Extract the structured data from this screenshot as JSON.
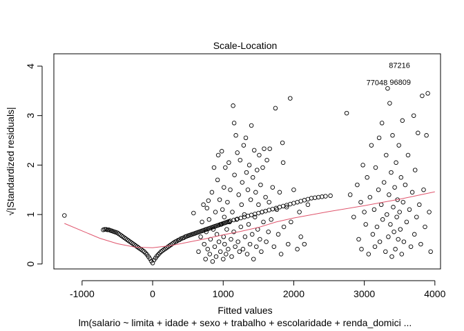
{
  "chart_data": {
    "type": "scatter",
    "title": "Scale-Location",
    "xlabel": "Fitted values",
    "ylabel": "√|Standardized residuals|",
    "subtitle": "lm(salario ~ limita + idade + sexo + trabalho + escolaridade + renda_domici ...",
    "xlim": [
      -1400,
      4080
    ],
    "ylim": [
      -0.1,
      4.25
    ],
    "x_ticks": [
      -1000,
      0,
      1000,
      2000,
      3000,
      4000
    ],
    "y_ticks": [
      0,
      1,
      2,
      3,
      4
    ],
    "x_tick_labels": [
      "-1000",
      "0",
      "1000",
      "2000",
      "3000",
      "4000"
    ],
    "y_tick_labels": [
      "0",
      "1",
      "2",
      "3",
      "4"
    ],
    "grid": false,
    "point_color": "#000000",
    "smooth_color": "#DF536B",
    "smooth_line": [
      [
        -1250,
        0.82
      ],
      [
        -1000,
        0.67
      ],
      [
        -750,
        0.52
      ],
      [
        -500,
        0.41
      ],
      [
        -250,
        0.34
      ],
      [
        0,
        0.33
      ],
      [
        250,
        0.37
      ],
      [
        500,
        0.44
      ],
      [
        750,
        0.51
      ],
      [
        1000,
        0.59
      ],
      [
        1250,
        0.66
      ],
      [
        1500,
        0.74
      ],
      [
        1750,
        0.85
      ],
      [
        2000,
        0.93
      ],
      [
        2500,
        1.06
      ],
      [
        3000,
        1.18
      ],
      [
        3500,
        1.31
      ],
      [
        4000,
        1.46
      ]
    ],
    "outliers": [
      {
        "label": "87216",
        "x": 3320,
        "y": 4.02
      },
      {
        "label": "77048",
        "x": 3000,
        "y": 3.67
      },
      {
        "label": "96809",
        "x": 3330,
        "y": 3.68
      }
    ],
    "points": [
      [
        -1250,
        0.98
      ],
      [
        -700,
        0.69
      ],
      [
        -680,
        0.7
      ],
      [
        -660,
        0.7
      ],
      [
        -640,
        0.69
      ],
      [
        -620,
        0.69
      ],
      [
        -600,
        0.68
      ],
      [
        -580,
        0.67
      ],
      [
        -560,
        0.66
      ],
      [
        -540,
        0.65
      ],
      [
        -520,
        0.64
      ],
      [
        -500,
        0.63
      ],
      [
        -480,
        0.61
      ],
      [
        -460,
        0.59
      ],
      [
        -440,
        0.57
      ],
      [
        -420,
        0.55
      ],
      [
        -400,
        0.53
      ],
      [
        -380,
        0.51
      ],
      [
        -360,
        0.49
      ],
      [
        -340,
        0.47
      ],
      [
        -320,
        0.45
      ],
      [
        -300,
        0.43
      ],
      [
        -280,
        0.41
      ],
      [
        -260,
        0.39
      ],
      [
        -240,
        0.37
      ],
      [
        -220,
        0.35
      ],
      [
        -200,
        0.33
      ],
      [
        -180,
        0.31
      ],
      [
        -160,
        0.29
      ],
      [
        -140,
        0.27
      ],
      [
        -120,
        0.25
      ],
      [
        -100,
        0.22
      ],
      [
        -80,
        0.19
      ],
      [
        -60,
        0.15
      ],
      [
        -40,
        0.11
      ],
      [
        -20,
        0.06
      ],
      [
        0,
        0.02
      ],
      [
        20,
        0.08
      ],
      [
        40,
        0.12
      ],
      [
        60,
        0.16
      ],
      [
        80,
        0.19
      ],
      [
        100,
        0.22
      ],
      [
        120,
        0.25
      ],
      [
        140,
        0.27
      ],
      [
        160,
        0.29
      ],
      [
        180,
        0.31
      ],
      [
        200,
        0.33
      ],
      [
        220,
        0.35
      ],
      [
        240,
        0.37
      ],
      [
        260,
        0.39
      ],
      [
        280,
        0.41
      ],
      [
        300,
        0.43
      ],
      [
        320,
        0.45
      ],
      [
        340,
        0.46
      ],
      [
        360,
        0.48
      ],
      [
        380,
        0.49
      ],
      [
        400,
        0.51
      ],
      [
        420,
        0.52
      ],
      [
        440,
        0.53
      ],
      [
        460,
        0.55
      ],
      [
        480,
        0.56
      ],
      [
        500,
        0.57
      ],
      [
        520,
        0.58
      ],
      [
        540,
        0.59
      ],
      [
        560,
        0.6
      ],
      [
        580,
        0.61
      ],
      [
        600,
        0.62
      ],
      [
        620,
        0.63
      ],
      [
        640,
        0.64
      ],
      [
        660,
        0.65
      ],
      [
        680,
        0.66
      ],
      [
        700,
        0.67
      ],
      [
        720,
        0.68
      ],
      [
        740,
        0.69
      ],
      [
        760,
        0.7
      ],
      [
        780,
        0.71
      ],
      [
        800,
        0.72
      ],
      [
        820,
        0.73
      ],
      [
        840,
        0.74
      ],
      [
        860,
        0.75
      ],
      [
        880,
        0.76
      ],
      [
        900,
        0.77
      ],
      [
        920,
        0.78
      ],
      [
        940,
        0.79
      ],
      [
        960,
        0.8
      ],
      [
        980,
        0.81
      ],
      [
        1000,
        0.82
      ],
      [
        1020,
        0.83
      ],
      [
        1040,
        0.84
      ],
      [
        1060,
        0.85
      ],
      [
        1080,
        0.86
      ],
      [
        1100,
        0.87
      ],
      [
        1150,
        0.89
      ],
      [
        1200,
        0.91
      ],
      [
        1250,
        0.93
      ],
      [
        1300,
        0.95
      ],
      [
        1350,
        0.97
      ],
      [
        1400,
        0.99
      ],
      [
        1450,
        1.01
      ],
      [
        1500,
        1.03
      ],
      [
        1550,
        1.05
      ],
      [
        1600,
        1.07
      ],
      [
        1650,
        1.09
      ],
      [
        1700,
        1.11
      ],
      [
        1750,
        1.13
      ],
      [
        1800,
        1.15
      ],
      [
        1850,
        1.17
      ],
      [
        1900,
        1.19
      ],
      [
        1950,
        1.21
      ],
      [
        2000,
        1.23
      ],
      [
        2050,
        1.25
      ],
      [
        2100,
        1.27
      ],
      [
        2150,
        1.29
      ],
      [
        2200,
        1.31
      ],
      [
        2250,
        1.33
      ],
      [
        2300,
        1.34
      ],
      [
        2350,
        1.35
      ],
      [
        2400,
        1.36
      ],
      [
        2450,
        1.37
      ],
      [
        2520,
        1.38
      ],
      [
        580,
        1.03
      ],
      [
        650,
        0.25
      ],
      [
        680,
        0.55
      ],
      [
        700,
        0.85
      ],
      [
        720,
        1.2
      ],
      [
        730,
        0.4
      ],
      [
        750,
        0.1
      ],
      [
        760,
        0.65
      ],
      [
        770,
        1.13
      ],
      [
        780,
        0.3
      ],
      [
        790,
        1.28
      ],
      [
        800,
        0.9
      ],
      [
        810,
        0.2
      ],
      [
        820,
        0.5
      ],
      [
        840,
        1.45
      ],
      [
        850,
        0.05
      ],
      [
        860,
        0.7
      ],
      [
        870,
        1.95
      ],
      [
        880,
        0.35
      ],
      [
        890,
        1.05
      ],
      [
        900,
        0.15
      ],
      [
        910,
        0.6
      ],
      [
        920,
        1.7
      ],
      [
        930,
        2.2
      ],
      [
        940,
        0.45
      ],
      [
        950,
        1.3
      ],
      [
        960,
        0.25
      ],
      [
        970,
        0.8
      ],
      [
        980,
        2.28
      ],
      [
        990,
        1.1
      ],
      [
        1000,
        0.1
      ],
      [
        1005,
        0.55
      ],
      [
        1010,
        1.55
      ],
      [
        1015,
        0.95
      ],
      [
        1020,
        0.4
      ],
      [
        1030,
        1.95
      ],
      [
        1040,
        0.2
      ],
      [
        1050,
        0.7
      ],
      [
        1060,
        1.25
      ],
      [
        1070,
        0.3
      ],
      [
        1080,
        2.05
      ],
      [
        1090,
        0.85
      ],
      [
        1100,
        1.5
      ],
      [
        1110,
        0.5
      ],
      [
        1120,
        0.15
      ],
      [
        1130,
        1.05
      ],
      [
        1140,
        3.2
      ],
      [
        1150,
        0.65
      ],
      [
        1155,
        2.85
      ],
      [
        1160,
        1.8
      ],
      [
        1170,
        0.35
      ],
      [
        1180,
        2.6
      ],
      [
        1190,
        0.9
      ],
      [
        1200,
        2.25
      ],
      [
        1210,
        0.45
      ],
      [
        1220,
        1.4
      ],
      [
        1230,
        0.25
      ],
      [
        1240,
        2.1
      ],
      [
        1250,
        0.75
      ],
      [
        1260,
        1.2
      ],
      [
        1270,
        1.65
      ],
      [
        1280,
        0.3
      ],
      [
        1290,
        2.4
      ],
      [
        1300,
        1.0
      ],
      [
        1310,
        0.55
      ],
      [
        1320,
        2.55
      ],
      [
        1330,
        1.85
      ],
      [
        1340,
        0.2
      ],
      [
        1350,
        1.5
      ],
      [
        1360,
        0.8
      ],
      [
        1370,
        2.0
      ],
      [
        1380,
        0.4
      ],
      [
        1390,
        1.3
      ],
      [
        1400,
        2.8
      ],
      [
        1410,
        0.6
      ],
      [
        1420,
        1.75
      ],
      [
        1430,
        0.1
      ],
      [
        1440,
        2.3
      ],
      [
        1450,
        0.95
      ],
      [
        1460,
        1.45
      ],
      [
        1470,
        0.35
      ],
      [
        1480,
        1.9
      ],
      [
        1490,
        0.7
      ],
      [
        1500,
        1.2
      ],
      [
        1510,
        2.2
      ],
      [
        1520,
        0.5
      ],
      [
        1530,
        1.6
      ],
      [
        1540,
        0.25
      ],
      [
        1550,
        1.05
      ],
      [
        1560,
        1.95
      ],
      [
        1570,
        0.85
      ],
      [
        1580,
        2.33
      ],
      [
        1600,
        1.35
      ],
      [
        1610,
        0.45
      ],
      [
        1620,
        2.1
      ],
      [
        1640,
        0.65
      ],
      [
        1650,
        1.25
      ],
      [
        1660,
        2.33
      ],
      [
        1680,
        0.9
      ],
      [
        1700,
        1.55
      ],
      [
        1720,
        0.35
      ],
      [
        1740,
        3.15
      ],
      [
        1760,
        1.1
      ],
      [
        1780,
        0.6
      ],
      [
        1800,
        1.45
      ],
      [
        1820,
        0.2
      ],
      [
        1840,
        2.45
      ],
      [
        1850,
        2.05
      ],
      [
        1860,
        0.75
      ],
      [
        1900,
        1.15
      ],
      [
        1920,
        0.4
      ],
      [
        1950,
        3.35
      ],
      [
        1960,
        0.85
      ],
      [
        2000,
        1.5
      ],
      [
        2050,
        0.3
      ],
      [
        2080,
        1.05
      ],
      [
        2100,
        0.55
      ],
      [
        2150,
        0.4
      ],
      [
        2200,
        1.2
      ],
      [
        2750,
        3.05
      ],
      [
        2800,
        1.4
      ],
      [
        2850,
        0.95
      ],
      [
        2900,
        1.6
      ],
      [
        2920,
        0.5
      ],
      [
        2950,
        1.25
      ],
      [
        2960,
        0.3
      ],
      [
        2980,
        2.0
      ],
      [
        3000,
        1.05
      ],
      [
        3020,
        0.8
      ],
      [
        3040,
        1.75
      ],
      [
        3060,
        0.2
      ],
      [
        3080,
        1.35
      ],
      [
        3100,
        2.4
      ],
      [
        3120,
        0.6
      ],
      [
        3140,
        1.1
      ],
      [
        3150,
        0.35
      ],
      [
        3160,
        1.95
      ],
      [
        3180,
        0.75
      ],
      [
        3200,
        1.5
      ],
      [
        3210,
        2.55
      ],
      [
        3220,
        0.45
      ],
      [
        3240,
        1.2
      ],
      [
        3250,
        2.85
      ],
      [
        3260,
        0.9
      ],
      [
        3280,
        1.65
      ],
      [
        3300,
        0.25
      ],
      [
        3310,
        2.2
      ],
      [
        3320,
        1.0
      ],
      [
        3330,
        3.55
      ],
      [
        3340,
        0.55
      ],
      [
        3350,
        1.4
      ],
      [
        3360,
        3.25
      ],
      [
        3370,
        0.8
      ],
      [
        3380,
        1.85
      ],
      [
        3390,
        0.15
      ],
      [
        3400,
        2.6
      ],
      [
        3410,
        1.15
      ],
      [
        3420,
        0.65
      ],
      [
        3430,
        1.55
      ],
      [
        3440,
        0.3
      ],
      [
        3450,
        2.05
      ],
      [
        3460,
        0.95
      ],
      [
        3470,
        1.3
      ],
      [
        3480,
        0.5
      ],
      [
        3490,
        2.4
      ],
      [
        3500,
        1.05
      ],
      [
        3510,
        0.7
      ],
      [
        3520,
        1.75
      ],
      [
        3530,
        0.2
      ],
      [
        3540,
        2.9
      ],
      [
        3550,
        1.25
      ],
      [
        3560,
        0.45
      ],
      [
        3580,
        1.6
      ],
      [
        3600,
        0.85
      ],
      [
        3620,
        2.2
      ],
      [
        3640,
        1.1
      ],
      [
        3660,
        0.35
      ],
      [
        3680,
        1.45
      ],
      [
        3700,
        3.0
      ],
      [
        3710,
        0.6
      ],
      [
        3720,
        1.9
      ],
      [
        3740,
        0.95
      ],
      [
        3760,
        2.65
      ],
      [
        3780,
        1.2
      ],
      [
        3800,
        0.4
      ],
      [
        3820,
        3.4
      ],
      [
        3840,
        1.5
      ],
      [
        3860,
        0.75
      ],
      [
        3880,
        2.6
      ],
      [
        3900,
        3.45
      ],
      [
        3920,
        1.05
      ],
      [
        3940,
        0.25
      ]
    ]
  }
}
